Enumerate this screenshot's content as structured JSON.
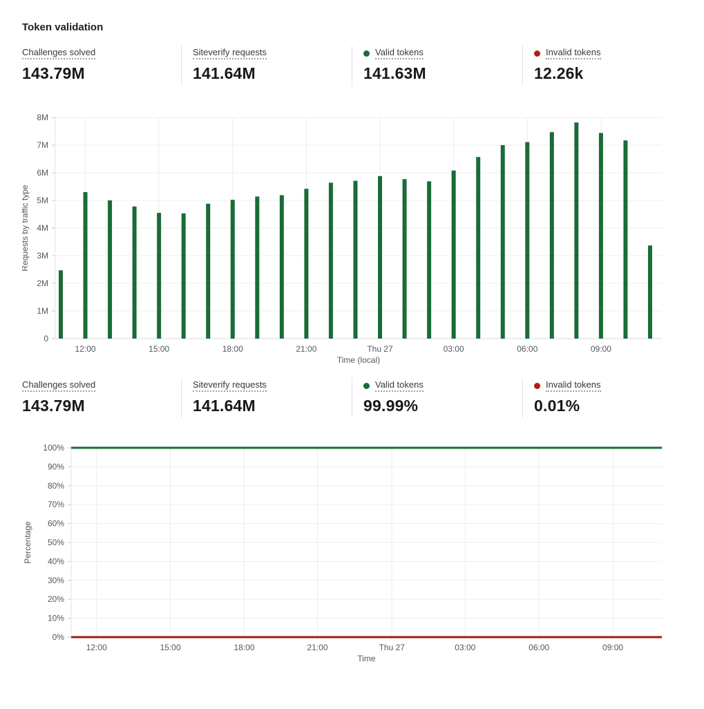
{
  "page": {
    "title": "Token validation"
  },
  "colors": {
    "green": "#1a6b38",
    "red_dot": "#b01e17",
    "red_line": "#9a1f15",
    "grid": "#ededed",
    "axis_line": "#d9d9d9",
    "tick_text": "#55575c"
  },
  "stats_row1": {
    "items": [
      {
        "label": "Challenges solved",
        "value": "143.79M"
      },
      {
        "label": "Siteverify requests",
        "value": "141.64M"
      },
      {
        "label": "Valid tokens",
        "value": "141.63M",
        "dot": "#1a6b38"
      },
      {
        "label": "Invalid tokens",
        "value": "12.26k",
        "dot": "#b01e17"
      }
    ]
  },
  "stats_row2": {
    "items": [
      {
        "label": "Challenges solved",
        "value": "143.79M"
      },
      {
        "label": "Siteverify requests",
        "value": "141.64M"
      },
      {
        "label": "Valid tokens",
        "value": "99.99%",
        "dot": "#1a6b38"
      },
      {
        "label": "Invalid tokens",
        "value": "0.01%",
        "dot": "#b01e17"
      }
    ]
  },
  "chart_data": [
    {
      "type": "bar",
      "title": "",
      "ylabel": "Requests by traffic type",
      "xlabel": "Time (local)",
      "ylim_millions": [
        0,
        8
      ],
      "yticks": [
        "0",
        "1M",
        "2M",
        "3M",
        "4M",
        "5M",
        "6M",
        "7M",
        "8M"
      ],
      "grid": true,
      "legend": "none",
      "bar_color": "#1a6b38",
      "categories": [
        "11:00",
        "12:00",
        "13:00",
        "14:00",
        "15:00",
        "16:00",
        "17:00",
        "18:00",
        "19:00",
        "20:00",
        "21:00",
        "22:00",
        "23:00",
        "Thu 27 00:00",
        "01:00",
        "02:00",
        "03:00",
        "04:00",
        "05:00",
        "06:00",
        "07:00",
        "08:00",
        "09:00",
        "10:00",
        "11:00"
      ],
      "values_millions": [
        2.47,
        5.3,
        5.0,
        4.78,
        4.55,
        4.53,
        4.88,
        5.02,
        5.14,
        5.19,
        5.42,
        5.64,
        5.71,
        5.88,
        5.77,
        5.69,
        6.08,
        6.57,
        7.0,
        7.11,
        7.47,
        7.82,
        7.44,
        7.17,
        3.37
      ],
      "xticks": [
        {
          "label": "12:00",
          "bar": 1
        },
        {
          "label": "15:00",
          "bar": 4
        },
        {
          "label": "18:00",
          "bar": 7
        },
        {
          "label": "21:00",
          "bar": 10
        },
        {
          "label": "Thu 27",
          "bar": 13
        },
        {
          "label": "03:00",
          "bar": 16
        },
        {
          "label": "06:00",
          "bar": 19
        },
        {
          "label": "09:00",
          "bar": 22
        }
      ]
    },
    {
      "type": "line",
      "title": "",
      "ylabel": "Percentage",
      "xlabel": "Time",
      "ylim_percent": [
        0,
        100
      ],
      "yticks": [
        "0%",
        "10%",
        "20%",
        "30%",
        "40%",
        "50%",
        "60%",
        "70%",
        "80%",
        "90%",
        "100%"
      ],
      "grid": true,
      "legend": "none",
      "series": [
        {
          "name": "Valid tokens",
          "constant_percent": 100,
          "color": "#1a6b38"
        },
        {
          "name": "Invalid tokens",
          "constant_percent": 0,
          "color": "#9a1f15"
        }
      ],
      "xticks": [
        {
          "label": "12:00",
          "pos": 0.043
        },
        {
          "label": "15:00",
          "pos": 0.168
        },
        {
          "label": "18:00",
          "pos": 0.293
        },
        {
          "label": "21:00",
          "pos": 0.417
        },
        {
          "label": "Thu 27",
          "pos": 0.543
        },
        {
          "label": "03:00",
          "pos": 0.667
        },
        {
          "label": "06:00",
          "pos": 0.792
        },
        {
          "label": "09:00",
          "pos": 0.917
        }
      ]
    }
  ]
}
